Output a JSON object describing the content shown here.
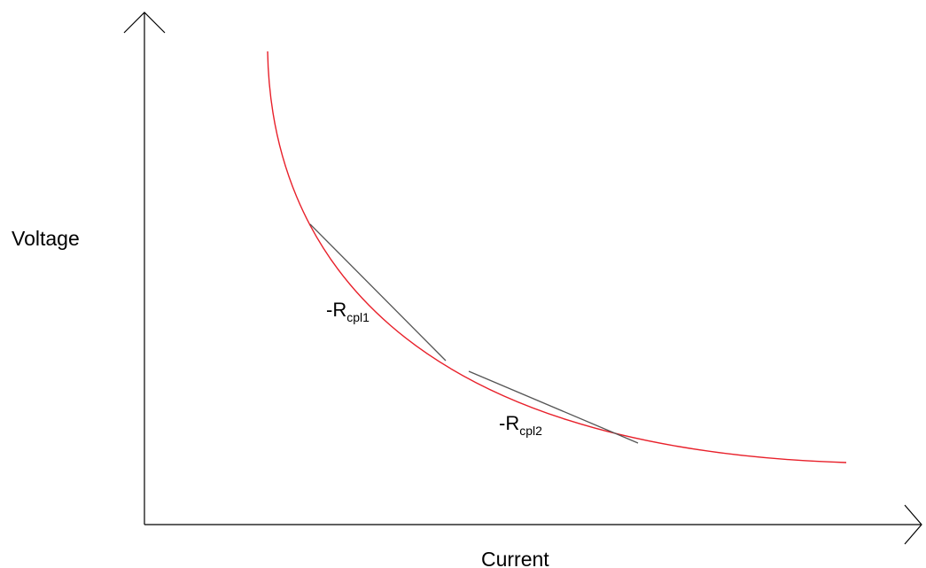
{
  "axes": {
    "x_label": "Current",
    "y_label": "Voltage"
  },
  "curve": {
    "name": "constant-power-load-curve",
    "color": "#e8202a"
  },
  "tangents": [
    {
      "prefix": "-R",
      "subscript": "cpl1",
      "color": "#555555"
    },
    {
      "prefix": "-R",
      "subscript": "cpl2",
      "color": "#555555"
    }
  ]
}
